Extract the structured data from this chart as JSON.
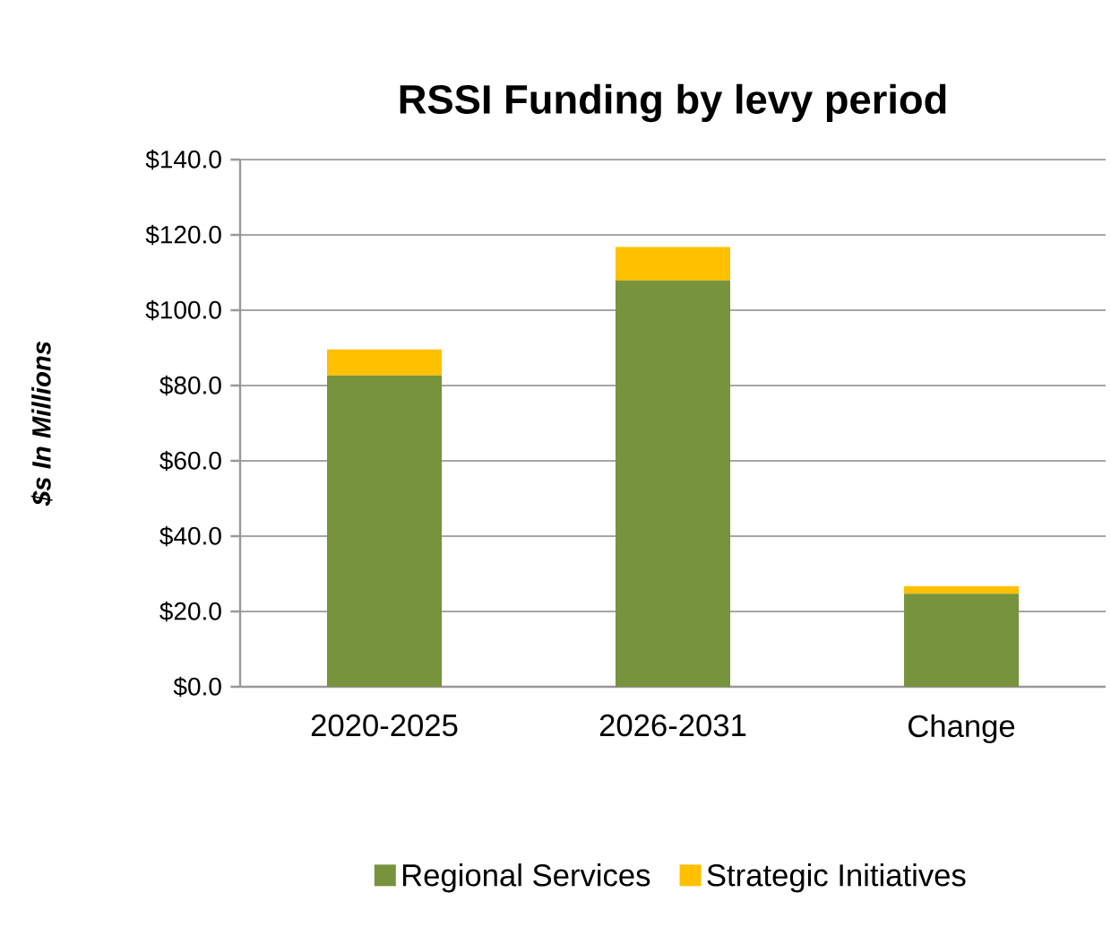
{
  "chart_data": {
    "type": "bar",
    "stacked": true,
    "title": "RSSI Funding by levy period",
    "ylabel": "$s In Millions",
    "categories": [
      "2020-2025",
      "2026-2031",
      "Change"
    ],
    "series": [
      {
        "name": "Regional Services",
        "color": "#77933c",
        "values": [
          82.7,
          107.9,
          24.7
        ]
      },
      {
        "name": "Strategic Initiatives",
        "color": "#ffc000",
        "values": [
          6.9,
          8.9,
          2.0
        ]
      }
    ],
    "ylim": [
      0,
      140
    ],
    "yticks": [
      {
        "value": 0,
        "label": "$0.0"
      },
      {
        "value": 20,
        "label": "$20.0"
      },
      {
        "value": 40,
        "label": "$40.0"
      },
      {
        "value": 60,
        "label": "$60.0"
      },
      {
        "value": 80,
        "label": "$80.0"
      },
      {
        "value": 100,
        "label": "$100.0"
      },
      {
        "value": 120,
        "label": "$120.0"
      },
      {
        "value": 140,
        "label": "$140.0"
      }
    ],
    "grid": "y",
    "legend": "bottom"
  }
}
